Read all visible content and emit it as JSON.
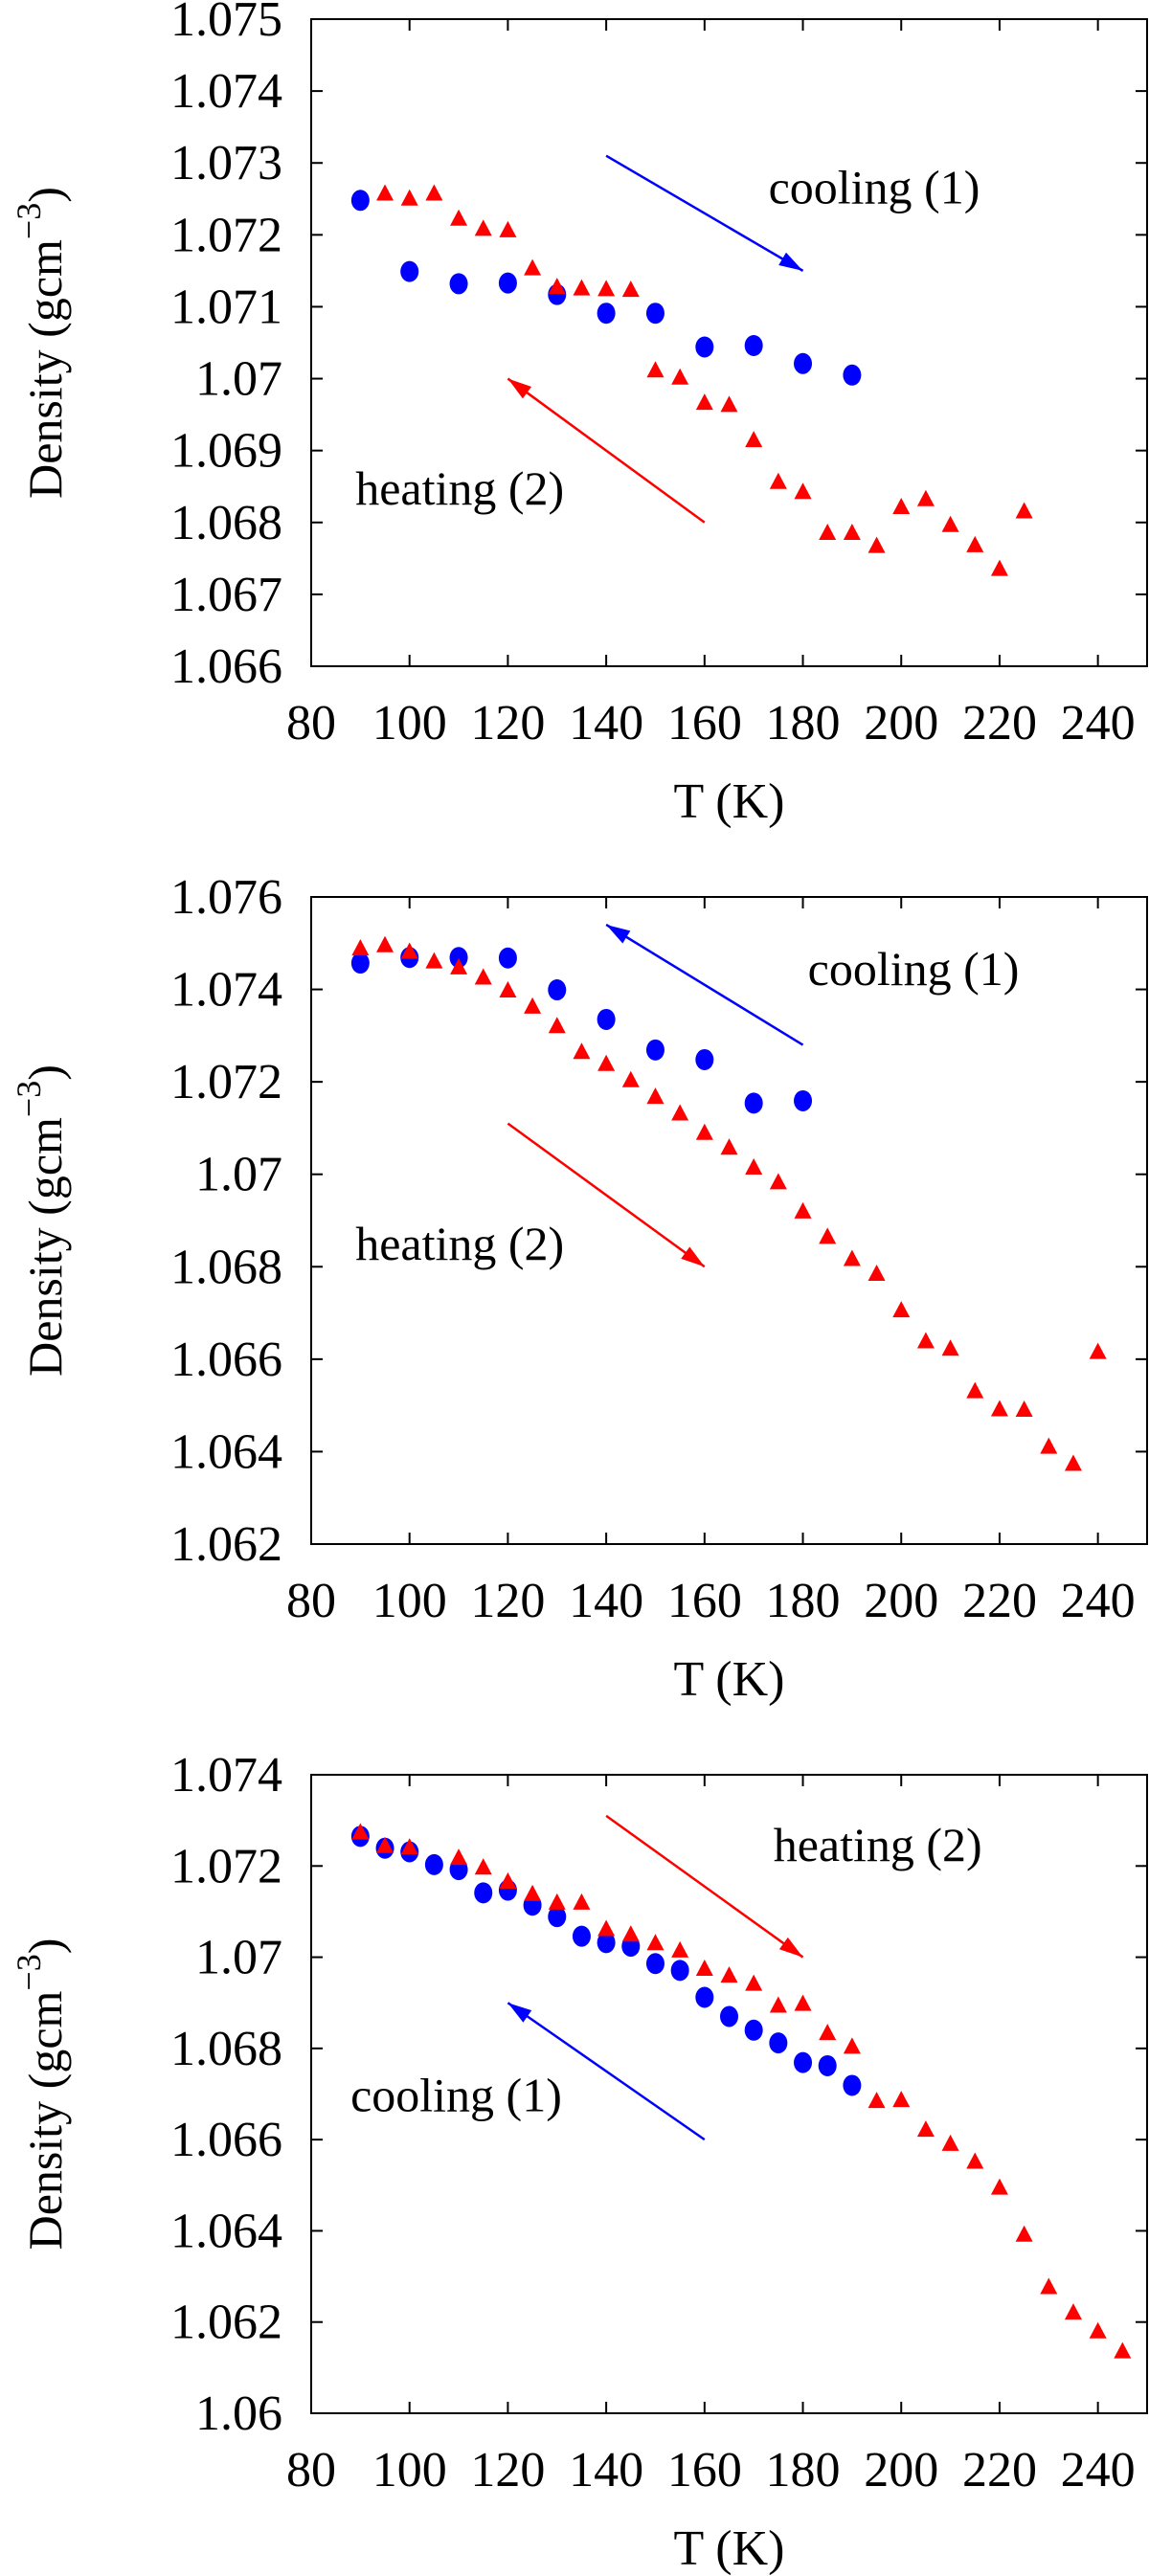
{
  "chart_data": [
    {
      "type": "scatter",
      "xlabel": "T (K)",
      "ylabel": "Density (gcm",
      "ylabel_sup": "−3",
      "ylabel_close": ")",
      "xlim": [
        80,
        250
      ],
      "ylim": [
        1.066,
        1.075
      ],
      "xticks": [
        80,
        100,
        120,
        140,
        160,
        180,
        200,
        220,
        240
      ],
      "yticks": [
        1.066,
        1.067,
        1.068,
        1.069,
        1.07,
        1.071,
        1.072,
        1.073,
        1.074,
        1.075
      ],
      "ytick_labels": [
        "1.066",
        "1.067",
        "1.068",
        "1.069",
        "1.07",
        "1.071",
        "1.072",
        "1.073",
        "1.074",
        "1.075"
      ],
      "grid": false,
      "series": [
        {
          "marker": "circle",
          "color": "#0000ff",
          "x": [
            90,
            100,
            110,
            120,
            130,
            140,
            150,
            160,
            170,
            180,
            190
          ],
          "y": [
            1.07248,
            1.07149,
            1.07132,
            1.07133,
            1.07117,
            1.07091,
            1.07091,
            1.07044,
            1.07046,
            1.07021,
            1.07005
          ]
        },
        {
          "marker": "triangle",
          "color": "#ff0000",
          "x": [
            95,
            100,
            105,
            110,
            115,
            120,
            125,
            130,
            135,
            140,
            145,
            150,
            155,
            160,
            165,
            170,
            175,
            180,
            185,
            190,
            195,
            200,
            205,
            210,
            215,
            220,
            225
          ],
          "y": [
            1.07257,
            1.0725,
            1.07257,
            1.07222,
            1.07208,
            1.07206,
            1.07153,
            1.07127,
            1.07125,
            1.07124,
            1.07123,
            1.07011,
            1.07001,
            1.06966,
            1.06963,
            1.06914,
            1.06856,
            1.06842,
            1.06785,
            1.06785,
            1.06767,
            1.06821,
            1.06832,
            1.06796,
            1.06768,
            1.06735,
            1.06815
          ]
        }
      ],
      "annotations": [
        {
          "text": "cooling (1)",
          "x": 173,
          "y": 1.07244,
          "arrow": {
            "from": [
              140,
              1.0731
            ],
            "to": [
              180,
              1.0715
            ],
            "color": "#0000ff"
          }
        },
        {
          "text": "heating (2)",
          "x": 89,
          "y": 1.06825,
          "arrow": {
            "from": [
              160,
              1.068
            ],
            "to": [
              120,
              1.07
            ],
            "color": "#ff0000"
          }
        }
      ]
    },
    {
      "type": "scatter",
      "xlabel": "T (K)",
      "ylabel": "Density (gcm",
      "ylabel_sup": "−3",
      "ylabel_close": ")",
      "xlim": [
        80,
        250
      ],
      "ylim": [
        1.062,
        1.076
      ],
      "xticks": [
        80,
        100,
        120,
        140,
        160,
        180,
        200,
        220,
        240
      ],
      "yticks": [
        1.062,
        1.064,
        1.066,
        1.068,
        1.07,
        1.072,
        1.074,
        1.076
      ],
      "ytick_labels": [
        "1.062",
        "1.064",
        "1.066",
        "1.068",
        "1.07",
        "1.072",
        "1.074",
        "1.076"
      ],
      "grid": false,
      "series": [
        {
          "marker": "circle",
          "color": "#0000ff",
          "x": [
            90,
            100,
            110,
            120,
            130,
            140,
            150,
            160,
            170,
            180
          ],
          "y": [
            1.07457,
            1.07469,
            1.07469,
            1.07468,
            1.07399,
            1.07335,
            1.07269,
            1.07248,
            1.07154,
            1.07159
          ]
        },
        {
          "marker": "triangle",
          "color": "#ff0000",
          "x": [
            90,
            95,
            100,
            105,
            110,
            115,
            120,
            125,
            130,
            135,
            140,
            145,
            150,
            155,
            160,
            165,
            170,
            175,
            180,
            185,
            190,
            195,
            200,
            205,
            210,
            215,
            220,
            225,
            230,
            235,
            240
          ],
          "y": [
            1.07488,
            1.07495,
            1.07481,
            1.0746,
            1.07447,
            1.07425,
            1.07397,
            1.07362,
            1.0732,
            1.07264,
            1.07238,
            1.07203,
            1.07167,
            1.07131,
            1.07089,
            1.07057,
            1.07014,
            1.06982,
            1.06919,
            1.06864,
            1.06816,
            1.06784,
            1.06705,
            1.06638,
            1.06622,
            1.0653,
            1.06491,
            1.0649,
            1.0641,
            1.06373,
            1.06615
          ]
        }
      ],
      "annotations": [
        {
          "text": "cooling (1)",
          "x": 181,
          "y": 1.07409,
          "arrow": {
            "from": [
              180,
              1.0728
            ],
            "to": [
              140,
              1.0754
            ],
            "color": "#0000ff"
          }
        },
        {
          "text": "heating (2)",
          "x": 89,
          "y": 1.06815,
          "arrow": {
            "from": [
              120,
              1.0711
            ],
            "to": [
              160,
              1.068
            ],
            "color": "#ff0000"
          }
        }
      ]
    },
    {
      "type": "scatter",
      "xlabel": "T (K)",
      "ylabel": "Density (gcm",
      "ylabel_sup": "−3",
      "ylabel_close": ")",
      "xlim": [
        80,
        250
      ],
      "ylim": [
        1.06,
        1.074
      ],
      "xticks": [
        80,
        100,
        120,
        140,
        160,
        180,
        200,
        220,
        240
      ],
      "yticks": [
        1.06,
        1.062,
        1.064,
        1.066,
        1.068,
        1.07,
        1.072,
        1.074
      ],
      "ytick_labels": [
        "1.06",
        "1.062",
        "1.064",
        "1.066",
        "1.068",
        "1.07",
        "1.072",
        "1.074"
      ],
      "grid": false,
      "series": [
        {
          "marker": "circle",
          "color": "#0000ff",
          "x": [
            90,
            95,
            100,
            105,
            110,
            115,
            120,
            125,
            130,
            135,
            140,
            145,
            150,
            155,
            160,
            165,
            170,
            175,
            180,
            185,
            190
          ],
          "y": [
            1.07265,
            1.07239,
            1.07231,
            1.07203,
            1.07192,
            1.07141,
            1.07147,
            1.07114,
            1.07089,
            1.07046,
            1.07032,
            1.07024,
            1.06986,
            1.06971,
            1.06912,
            1.0687,
            1.0684,
            1.06812,
            1.06769,
            1.06762,
            1.06719
          ]
        },
        {
          "marker": "triangle",
          "color": "#ff0000",
          "x": [
            90,
            95,
            100,
            110,
            115,
            120,
            125,
            130,
            135,
            140,
            145,
            150,
            155,
            160,
            165,
            170,
            175,
            180,
            185,
            190,
            195,
            200,
            205,
            210,
            215,
            220,
            225,
            230,
            235,
            240,
            245
          ],
          "y": [
            1.07273,
            1.07243,
            1.0724,
            1.07217,
            1.07196,
            1.07165,
            1.07138,
            1.07119,
            1.07119,
            1.07061,
            1.07049,
            1.0703,
            1.07014,
            1.06974,
            1.06959,
            1.06941,
            1.06893,
            1.06897,
            1.06833,
            1.06803,
            1.06684,
            1.06686,
            1.06621,
            1.0659,
            1.06551,
            1.06494,
            1.06391,
            1.06276,
            1.0622,
            1.06179,
            1.06135
          ]
        }
      ],
      "annotations": [
        {
          "text": "heating (2)",
          "x": 174,
          "y": 1.07211,
          "arrow": {
            "from": [
              140,
              1.0731
            ],
            "to": [
              180,
              1.07
            ],
            "color": "#ff0000"
          }
        },
        {
          "text": "cooling (1)",
          "x": 88,
          "y": 1.06662,
          "arrow": {
            "from": [
              160,
              1.066
            ],
            "to": [
              120,
              1.069
            ],
            "color": "#0000ff"
          }
        }
      ]
    }
  ]
}
